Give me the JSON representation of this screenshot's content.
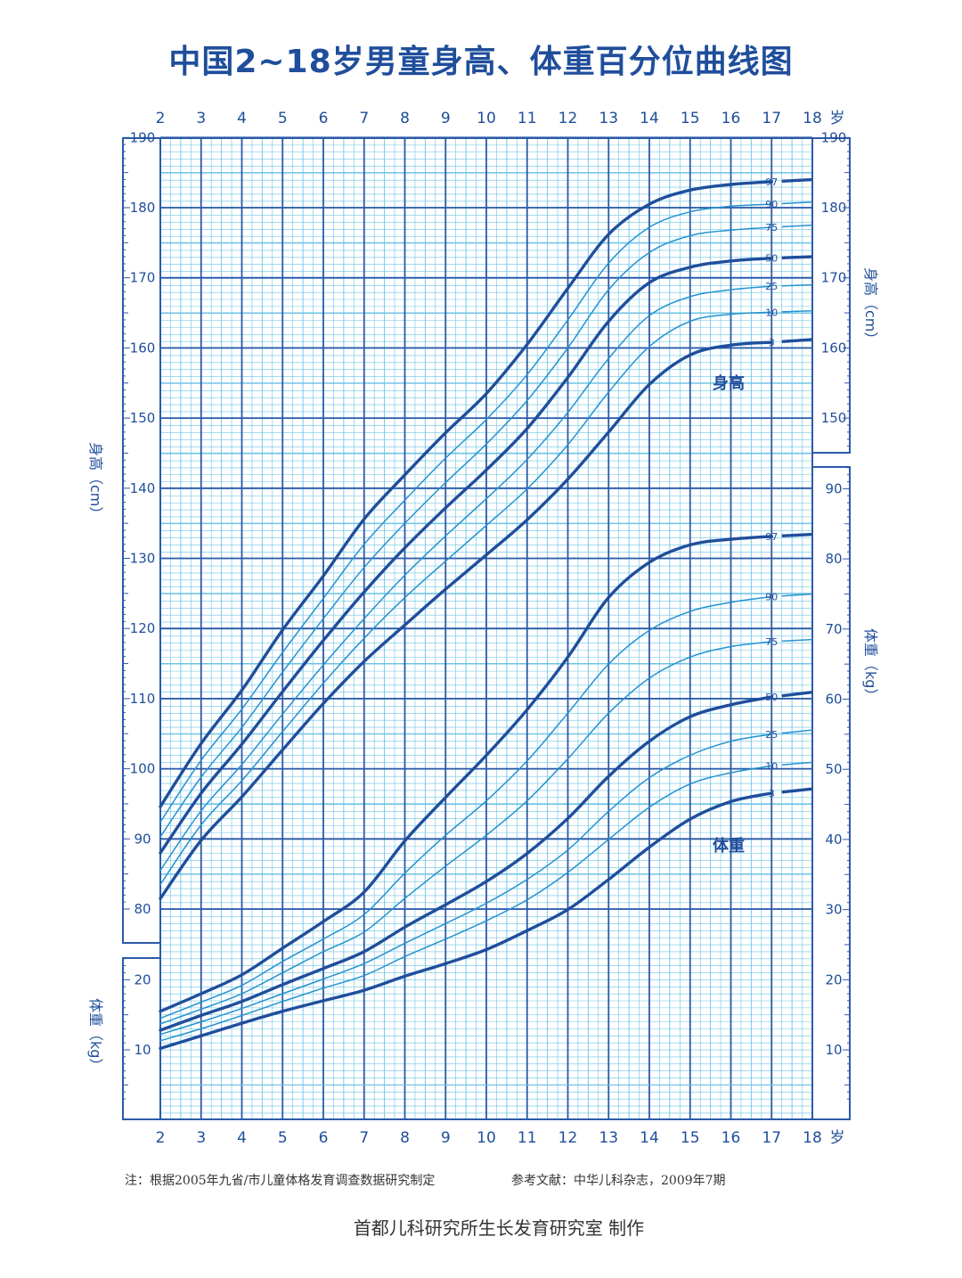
{
  "title": "中国2~18岁男童身高、体重百分位曲线图",
  "footer": {
    "note": "注：根据2005年九省/市儿童体格发育调查数据研究制定",
    "reference": "参考文献：中华儿科杂志，2009年7期",
    "credit": "首都儿科研究所生长发育研究室  制作"
  },
  "colors": {
    "primary": "#1f4e9b",
    "grid_minor": "#6cc3e6",
    "grid_major": "#2c5aa8",
    "curve_thin": "#2492d0",
    "curve_bold": "#1f4e9b"
  },
  "chart_data": {
    "type": "line",
    "title": "中国2~18岁男童身高、体重百分位曲线图",
    "age_axis": {
      "ticks": [
        "2",
        "3",
        "4",
        "5",
        "6",
        "7",
        "8",
        "9",
        "10",
        "11",
        "12",
        "13",
        "14",
        "15",
        "16",
        "17",
        "18"
      ],
      "unit": "岁",
      "range": [
        2,
        18
      ]
    },
    "height_axis": {
      "label": "身高（cm）",
      "range": [
        75,
        190
      ],
      "ticks": [
        80,
        90,
        100,
        110,
        120,
        130,
        140,
        150,
        160,
        170,
        180,
        190
      ],
      "left_ticks": [
        80,
        90,
        100,
        110,
        120,
        130,
        140,
        150,
        160,
        170,
        180,
        190
      ],
      "right_ticks": [
        150,
        160,
        170,
        180,
        190
      ]
    },
    "weight_axis": {
      "label": "体重（kg）",
      "range": [
        0,
        95
      ],
      "left_ticks": [
        10,
        20
      ],
      "right_ticks": [
        10,
        20,
        30,
        40,
        50,
        60,
        70,
        80,
        90
      ]
    },
    "grid": true,
    "area_labels": {
      "height": "身高",
      "weight": "体重"
    },
    "percentiles": [
      "3",
      "10",
      "25",
      "50",
      "75",
      "90",
      "97"
    ],
    "bold_percentiles": [
      "3",
      "50",
      "97"
    ],
    "height_series": {
      "x": [
        2,
        3,
        4,
        5,
        6,
        7,
        8,
        9,
        10,
        11,
        12,
        13,
        14,
        15,
        16,
        17,
        18
      ],
      "series": [
        {
          "name": "97",
          "values": [
            94.6,
            103.6,
            111.2,
            119.8,
            127.5,
            135.6,
            141.9,
            147.9,
            153.5,
            160.5,
            168.5,
            176.2,
            180.5,
            182.5,
            183.3,
            183.7,
            184.0
          ]
        },
        {
          "name": "90",
          "values": [
            92.4,
            101.2,
            108.5,
            116.6,
            124.3,
            132.0,
            138.3,
            144.3,
            149.8,
            156.2,
            164.0,
            172.1,
            177.2,
            179.4,
            180.2,
            180.5,
            180.8
          ]
        },
        {
          "name": "75",
          "values": [
            90.3,
            98.8,
            105.9,
            113.8,
            121.4,
            128.7,
            135.0,
            140.8,
            146.3,
            152.5,
            160.0,
            168.3,
            173.6,
            176.0,
            176.8,
            177.2,
            177.5
          ]
        },
        {
          "name": "50",
          "values": [
            88.0,
            96.5,
            103.5,
            111.0,
            118.3,
            125.2,
            131.5,
            137.2,
            142.6,
            148.5,
            155.8,
            163.8,
            169.3,
            171.5,
            172.4,
            172.8,
            173.0
          ]
        },
        {
          "name": "25",
          "values": [
            85.5,
            94.0,
            100.6,
            107.8,
            114.8,
            121.4,
            127.6,
            133.2,
            138.5,
            144.1,
            150.8,
            158.5,
            164.6,
            167.3,
            168.3,
            168.8,
            169.0
          ]
        },
        {
          "name": "10",
          "values": [
            83.5,
            92.0,
            98.3,
            105.3,
            112.2,
            118.6,
            124.4,
            129.6,
            134.7,
            139.9,
            146.2,
            153.7,
            160.2,
            163.8,
            164.8,
            165.1,
            165.3
          ]
        },
        {
          "name": "3",
          "values": [
            81.5,
            89.8,
            96.0,
            102.7,
            109.3,
            115.3,
            120.5,
            125.6,
            130.5,
            135.5,
            141.3,
            148.0,
            154.8,
            159.0,
            160.4,
            160.8,
            161.2
          ]
        }
      ]
    },
    "weight_series": {
      "x": [
        2,
        3,
        4,
        5,
        6,
        7,
        8,
        9,
        10,
        11,
        12,
        13,
        14,
        15,
        16,
        17,
        18
      ],
      "series": [
        {
          "name": "97",
          "values": [
            15.5,
            18.0,
            20.7,
            24.5,
            28.3,
            32.5,
            39.8,
            46.0,
            52.0,
            58.5,
            66.0,
            74.5,
            79.5,
            82.0,
            82.8,
            83.2,
            83.5
          ]
        },
        {
          "name": "90",
          "values": [
            14.5,
            16.8,
            19.2,
            22.6,
            25.8,
            29.3,
            35.2,
            40.6,
            45.5,
            51.2,
            58.0,
            65.0,
            69.8,
            72.5,
            73.8,
            74.6,
            75.0
          ]
        },
        {
          "name": "75",
          "values": [
            13.7,
            15.8,
            18.0,
            21.0,
            24.0,
            26.8,
            31.6,
            36.2,
            40.6,
            45.5,
            51.5,
            58.0,
            63.0,
            66.0,
            67.5,
            68.2,
            68.5
          ]
        },
        {
          "name": "50",
          "values": [
            12.8,
            14.9,
            16.9,
            19.3,
            21.6,
            24.0,
            27.5,
            30.7,
            34.0,
            38.0,
            43.0,
            49.0,
            54.0,
            57.5,
            59.2,
            60.3,
            61.0
          ]
        },
        {
          "name": "25",
          "values": [
            12.2,
            14.0,
            15.9,
            18.0,
            20.1,
            22.3,
            25.2,
            28.0,
            30.9,
            34.3,
            38.5,
            44.0,
            48.8,
            52.0,
            54.0,
            55.0,
            55.6
          ]
        },
        {
          "name": "10",
          "values": [
            11.3,
            13.0,
            14.9,
            16.9,
            18.8,
            20.6,
            23.3,
            25.8,
            28.4,
            31.4,
            35.3,
            40.0,
            44.6,
            47.9,
            49.5,
            50.5,
            51.0
          ]
        },
        {
          "name": "3",
          "values": [
            10.2,
            12.0,
            13.8,
            15.5,
            17.0,
            18.5,
            20.5,
            22.3,
            24.3,
            27.0,
            30.0,
            34.3,
            38.9,
            42.9,
            45.4,
            46.6,
            47.2
          ]
        }
      ]
    }
  }
}
